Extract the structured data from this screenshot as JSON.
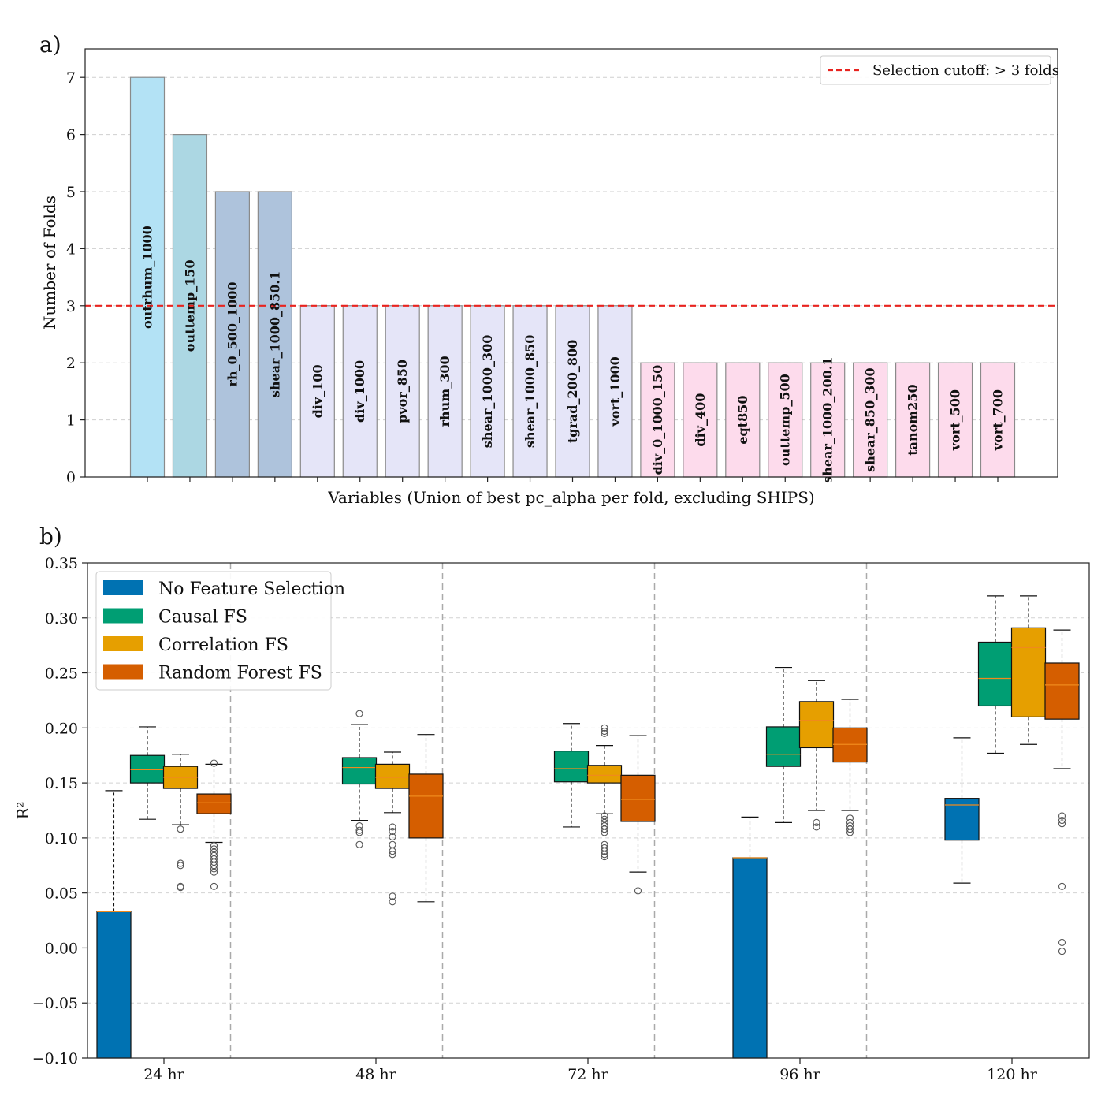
{
  "chart_data": [
    {
      "panel": "a)",
      "type": "bar",
      "xlabel": "Variables (Union of best pc_alpha per fold, excluding SHIPS)",
      "ylabel": "Number of Folds",
      "ylim": [
        0,
        7.5
      ],
      "yticks": [
        "0",
        "1",
        "2",
        "3",
        "4",
        "5",
        "6",
        "7"
      ],
      "cutoff": {
        "value": 3,
        "label": "Selection cutoff: > 3 folds",
        "color": "#e8231f"
      },
      "legend_position": "top-right",
      "grid": true,
      "categories": [
        "outrhum_1000",
        "outtemp_150",
        "rh_0_500_1000",
        "shear_1000_850.1",
        "div_100",
        "div_1000",
        "pvor_850",
        "rhum_300",
        "shear_1000_300",
        "shear_1000_850",
        "tgrad_200_800",
        "vort_1000",
        "div_0_1000_150",
        "div_400",
        "eqt850",
        "outtemp_500",
        "shear_1000_200.1",
        "shear_850_300",
        "tanom250",
        "vort_500",
        "vort_700"
      ],
      "values": [
        7,
        6,
        5,
        5,
        3,
        3,
        3,
        3,
        3,
        3,
        3,
        3,
        2,
        2,
        2,
        2,
        2,
        2,
        2,
        2,
        2
      ],
      "colors": [
        "#b3e2f5",
        "#acd7e3",
        "#aec3dc",
        "#aec3dc",
        "#e5e5f8",
        "#e5e5f8",
        "#e5e5f8",
        "#e5e5f8",
        "#e5e5f8",
        "#e5e5f8",
        "#e5e5f8",
        "#e5e5f8",
        "#fddbec",
        "#fddbec",
        "#fddbec",
        "#fddbec",
        "#fddbec",
        "#fddbec",
        "#fddbec",
        "#fddbec",
        "#fddbec"
      ]
    },
    {
      "panel": "b)",
      "type": "box",
      "ylabel": "R²",
      "ylim": [
        -0.1,
        0.35
      ],
      "yticks": [
        "−0.10",
        "−0.05",
        "0.00",
        "0.05",
        "0.10",
        "0.15",
        "0.20",
        "0.25",
        "0.30",
        "0.35"
      ],
      "legend_position": "top-left",
      "grid": true,
      "categories": [
        "24 hr",
        "48 hr",
        "72 hr",
        "96 hr",
        "120 hr"
      ],
      "series": [
        {
          "name": "No Feature Selection",
          "color": "#0072b2",
          "boxes": [
            {
              "q1": -0.1,
              "median": 0.033,
              "q3": 0.033,
              "whislo": -0.1,
              "whishi": 0.143,
              "fliers": []
            },
            null,
            null,
            {
              "q1": -0.1,
              "median": 0.082,
              "q3": 0.082,
              "whislo": -0.1,
              "whishi": 0.119,
              "fliers": []
            },
            {
              "q1": 0.098,
              "median": 0.13,
              "q3": 0.136,
              "whislo": 0.059,
              "whishi": 0.191,
              "fliers": []
            }
          ]
        },
        {
          "name": "Causal FS",
          "color": "#009e73",
          "boxes": [
            {
              "q1": 0.15,
              "median": 0.162,
              "q3": 0.175,
              "whislo": 0.117,
              "whishi": 0.201,
              "fliers": []
            },
            {
              "q1": 0.149,
              "median": 0.164,
              "q3": 0.173,
              "whislo": 0.116,
              "whishi": 0.203,
              "fliers": [
                0.213,
                0.111,
                0.107,
                0.105,
                0.094
              ]
            },
            {
              "q1": 0.151,
              "median": 0.163,
              "q3": 0.179,
              "whislo": 0.11,
              "whishi": 0.204,
              "fliers": []
            },
            {
              "q1": 0.165,
              "median": 0.176,
              "q3": 0.201,
              "whislo": 0.114,
              "whishi": 0.255,
              "fliers": []
            },
            {
              "q1": 0.22,
              "median": 0.245,
              "q3": 0.278,
              "whislo": 0.177,
              "whishi": 0.32,
              "fliers": []
            }
          ]
        },
        {
          "name": "Correlation FS",
          "color": "#e69f00",
          "boxes": [
            {
              "q1": 0.145,
              "median": 0.155,
              "q3": 0.165,
              "whislo": 0.112,
              "whishi": 0.176,
              "fliers": [
                0.108,
                0.077,
                0.075,
                0.056,
                0.055
              ]
            },
            {
              "q1": 0.145,
              "median": 0.155,
              "q3": 0.167,
              "whislo": 0.123,
              "whishi": 0.178,
              "fliers": [
                0.11,
                0.106,
                0.101,
                0.094,
                0.088,
                0.085,
                0.047,
                0.042
              ]
            },
            {
              "q1": 0.15,
              "median": 0.157,
              "q3": 0.166,
              "whislo": 0.122,
              "whishi": 0.184,
              "fliers": [
                0.2,
                0.197,
                0.195,
                0.12,
                0.117,
                0.114,
                0.111,
                0.108,
                0.105,
                0.094,
                0.091,
                0.088,
                0.085,
                0.083
              ]
            },
            {
              "q1": 0.182,
              "median": 0.207,
              "q3": 0.224,
              "whislo": 0.125,
              "whishi": 0.243,
              "fliers": [
                0.114,
                0.11
              ]
            },
            {
              "q1": 0.21,
              "median": 0.273,
              "q3": 0.291,
              "whislo": 0.185,
              "whishi": 0.32,
              "fliers": []
            }
          ]
        },
        {
          "name": "Random Forest FS",
          "color": "#d55e00",
          "boxes": [
            {
              "q1": 0.122,
              "median": 0.132,
              "q3": 0.14,
              "whislo": 0.096,
              "whishi": 0.167,
              "fliers": [
                0.168,
                0.093,
                0.09,
                0.087,
                0.084,
                0.081,
                0.078,
                0.075,
                0.072,
                0.069,
                0.056
              ]
            },
            {
              "q1": 0.1,
              "median": 0.138,
              "q3": 0.158,
              "whislo": 0.042,
              "whishi": 0.194,
              "fliers": []
            },
            {
              "q1": 0.115,
              "median": 0.135,
              "q3": 0.157,
              "whislo": 0.069,
              "whishi": 0.193,
              "fliers": [
                0.052
              ]
            },
            {
              "q1": 0.169,
              "median": 0.185,
              "q3": 0.2,
              "whislo": 0.125,
              "whishi": 0.226,
              "fliers": [
                0.118,
                0.114,
                0.111,
                0.108,
                0.105
              ]
            },
            {
              "q1": 0.208,
              "median": 0.239,
              "q3": 0.259,
              "whislo": 0.163,
              "whishi": 0.289,
              "fliers": [
                0.12,
                0.116,
                0.113,
                0.056,
                0.005,
                -0.003
              ]
            }
          ]
        }
      ]
    }
  ]
}
